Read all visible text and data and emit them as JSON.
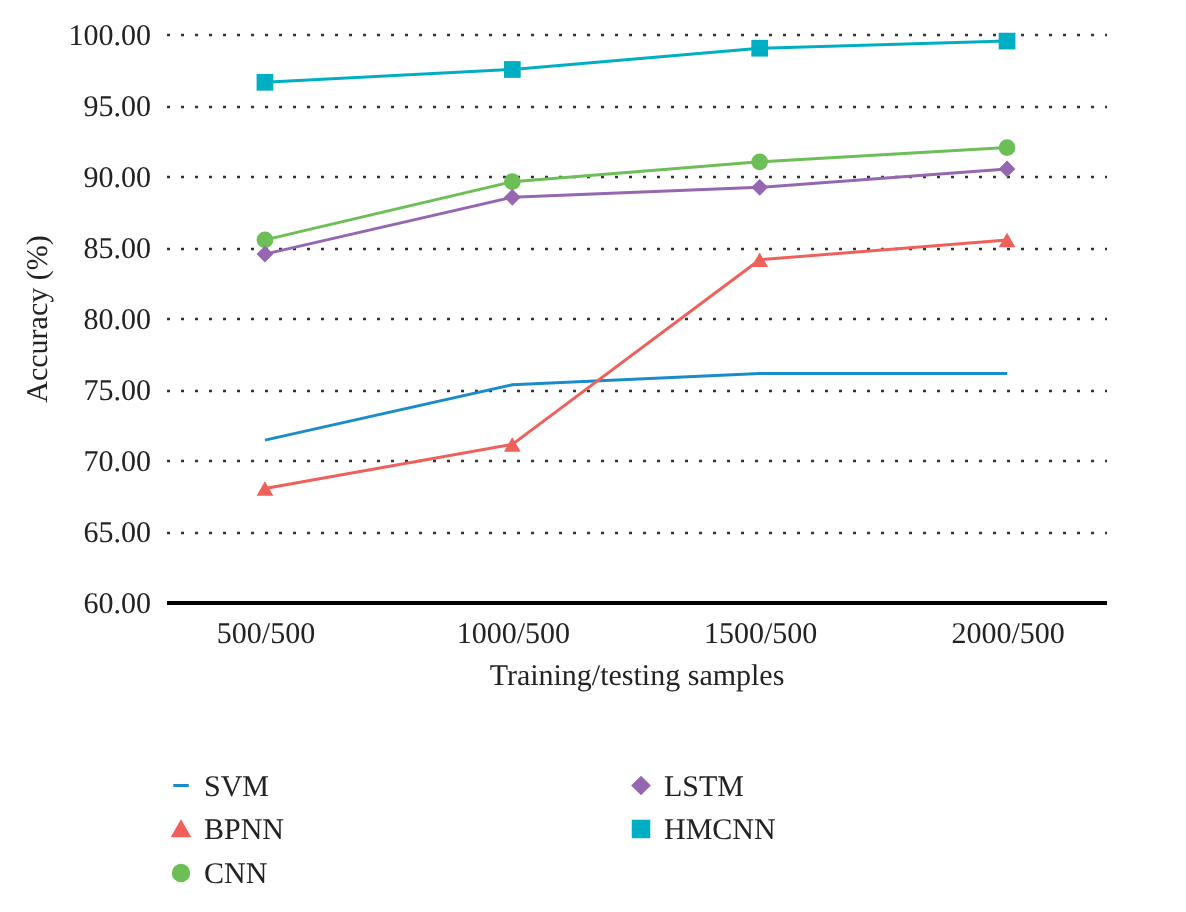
{
  "chart_data": {
    "type": "line",
    "xlabel": "Training/testing samples",
    "ylabel": "Accuracy (%)",
    "categories": [
      "500/500",
      "1000/500",
      "1500/500",
      "2000/500"
    ],
    "series": [
      {
        "name": "SVM",
        "color": "#1a8ccc",
        "marker": "none",
        "values": [
          71.4,
          75.3,
          76.1,
          76.1
        ]
      },
      {
        "name": "BPNN",
        "color": "#f0605a",
        "marker": "triangle",
        "values": [
          68.0,
          71.1,
          84.1,
          85.5
        ]
      },
      {
        "name": "CNN",
        "color": "#6cbf56",
        "marker": "circle",
        "values": [
          85.5,
          89.6,
          91.0,
          92.0
        ]
      },
      {
        "name": "LSTM",
        "color": "#9467b0",
        "marker": "diamond",
        "values": [
          84.5,
          88.5,
          89.2,
          90.5
        ]
      },
      {
        "name": "HMCNN",
        "color": "#00aec4",
        "marker": "square",
        "values": [
          96.6,
          97.5,
          99.0,
          99.5
        ]
      }
    ],
    "ylim": [
      60,
      100
    ],
    "yticks": [
      {
        "value": 60,
        "label": "60.00"
      },
      {
        "value": 65,
        "label": "65.00"
      },
      {
        "value": 70,
        "label": "70.00"
      },
      {
        "value": 75,
        "label": "75.00"
      },
      {
        "value": 80,
        "label": "80.00"
      },
      {
        "value": 85,
        "label": "85.00"
      },
      {
        "value": 90,
        "label": "90.00"
      },
      {
        "value": 95,
        "label": "95.00"
      },
      {
        "value": 100,
        "label": "100.00"
      }
    ],
    "grid": "y",
    "line_style": "solid",
    "legend": "bottom"
  }
}
